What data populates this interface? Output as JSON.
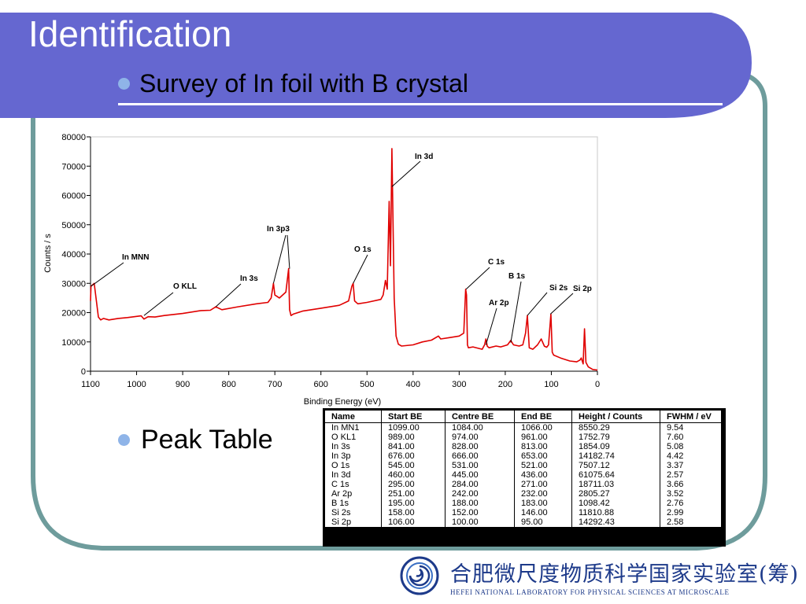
{
  "slide": {
    "title": "Identification",
    "bullets": [
      "Survey of In foil with B crystal",
      "Peak Table"
    ],
    "colors": {
      "title_bar": "#6567d0",
      "frame": "#6e9c9c",
      "bullet": "#8fb4e8",
      "spectrum": "#e00000"
    }
  },
  "chart_data": {
    "type": "line",
    "xlabel": "Binding Energy (eV)",
    "ylabel": "Counts / s",
    "xlim": [
      1100,
      0
    ],
    "ylim": [
      0,
      80000
    ],
    "x_ticks": [
      "1100",
      "1000",
      "900",
      "800",
      "700",
      "600",
      "500",
      "400",
      "300",
      "200",
      "100",
      "0"
    ],
    "y_ticks": [
      "0",
      "10000",
      "20000",
      "30000",
      "40000",
      "50000",
      "60000",
      "70000",
      "80000"
    ],
    "grid": false,
    "series": [
      {
        "name": "",
        "x": [
          1105,
          1099,
          1092,
          1088,
          1083,
          1078,
          1072,
          1060,
          1040,
          1020,
          1000,
          990,
          984,
          975,
          960,
          940,
          900,
          860,
          840,
          828,
          815,
          780,
          740,
          715,
          708,
          703,
          700,
          690,
          676,
          670,
          668,
          665,
          660,
          640,
          600,
          560,
          540,
          533,
          530,
          527,
          520,
          500,
          470,
          465,
          460,
          456,
          452,
          449,
          446,
          441,
          437,
          432,
          425,
          400,
          380,
          360,
          345,
          340,
          320,
          300,
          290,
          286,
          284,
          282,
          280,
          270,
          250,
          245,
          242,
          239,
          235,
          220,
          210,
          195,
          188,
          182,
          170,
          162,
          156,
          152,
          148,
          140,
          130,
          122,
          115,
          110,
          106,
          101,
          98,
          95,
          80,
          60,
          45,
          38,
          35,
          31,
          28,
          25,
          20,
          10,
          0
        ],
        "y": [
          24000,
          29000,
          30000,
          25000,
          18500,
          17500,
          18000,
          17500,
          18000,
          18300,
          18700,
          18900,
          17800,
          18600,
          18500,
          19000,
          19700,
          20700,
          20800,
          22000,
          21000,
          22000,
          23000,
          23500,
          25000,
          30000,
          26000,
          25000,
          27000,
          35000,
          21000,
          19000,
          19500,
          20500,
          21500,
          22500,
          24000,
          29000,
          30000,
          24000,
          23000,
          23500,
          24500,
          26000,
          31000,
          28000,
          58000,
          36000,
          76000,
          25000,
          12000,
          9200,
          8600,
          9000,
          10000,
          10600,
          12000,
          11000,
          11500,
          12000,
          13000,
          28000,
          26000,
          9000,
          8000,
          8300,
          7500,
          9000,
          11000,
          8500,
          8000,
          8600,
          8300,
          9000,
          10500,
          9000,
          8600,
          9000,
          13000,
          19000,
          8000,
          7500,
          9000,
          11000,
          8500,
          8200,
          9000,
          19500,
          6500,
          5500,
          4500,
          3500,
          3200,
          3800,
          4500,
          2500,
          14500,
          3000,
          1500,
          600,
          400
        ]
      }
    ],
    "annotations": [
      {
        "label": "In MNN",
        "x": 1099,
        "y": 29000
      },
      {
        "label": "O KLL",
        "x": 984,
        "y": 19000
      },
      {
        "label": "In 3s",
        "x": 828,
        "y": 22000
      },
      {
        "label": "In 3p3",
        "x": 703,
        "y": 30000
      },
      {
        "label": "",
        "x": 668,
        "y": 35000
      },
      {
        "label": "O 1s",
        "x": 530,
        "y": 30000
      },
      {
        "label": "In 3d",
        "x": 446,
        "y": 63000
      },
      {
        "label": "C 1s",
        "x": 285,
        "y": 28000
      },
      {
        "label": "B 1s",
        "x": 188,
        "y": 9800
      },
      {
        "label": "Ar 2p",
        "x": 242,
        "y": 9000
      },
      {
        "label": "Si 2s",
        "x": 152,
        "y": 19000
      },
      {
        "label": "Si 2p",
        "x": 102,
        "y": 19500
      }
    ]
  },
  "peak_table": {
    "headers": [
      "Name",
      "Start BE",
      "Centre BE",
      "End BE",
      "Height / Counts",
      "FWHM / eV"
    ],
    "rows": [
      [
        "In MN1",
        "1099.00",
        "1084.00",
        "1066.00",
        "8550.29",
        "9.54"
      ],
      [
        "O KL1",
        "989.00",
        "974.00",
        "961.00",
        "1752.79",
        "7.60"
      ],
      [
        "In 3s",
        "841.00",
        "828.00",
        "813.00",
        "1854.09",
        "5.08"
      ],
      [
        "In 3p",
        "676.00",
        "666.00",
        "653.00",
        "14182.74",
        "4.42"
      ],
      [
        "O 1s",
        "545.00",
        "531.00",
        "521.00",
        "7507.12",
        "3.37"
      ],
      [
        "In 3d",
        "460.00",
        "445.00",
        "436.00",
        "61075.64",
        "2.57"
      ],
      [
        "C 1s",
        "295.00",
        "284.00",
        "271.00",
        "18711.03",
        "3.66"
      ],
      [
        "Ar 2p",
        "251.00",
        "242.00",
        "232.00",
        "2805.27",
        "3.52"
      ],
      [
        "B 1s",
        "195.00",
        "188.00",
        "183.00",
        "1098.42",
        "2.76"
      ],
      [
        "Si 2s",
        "158.00",
        "152.00",
        "146.00",
        "11810.88",
        "2.99"
      ],
      [
        "Si 2p",
        "106.00",
        "100.00",
        "95.00",
        "14292.43",
        "2.58"
      ]
    ]
  },
  "logo": {
    "chinese": "合肥微尺度物质科学国家实验室(筹)",
    "english": "HEFEI NATIONAL LABORATORY FOR PHYSICAL SCIENCES AT MICROSCALE"
  }
}
